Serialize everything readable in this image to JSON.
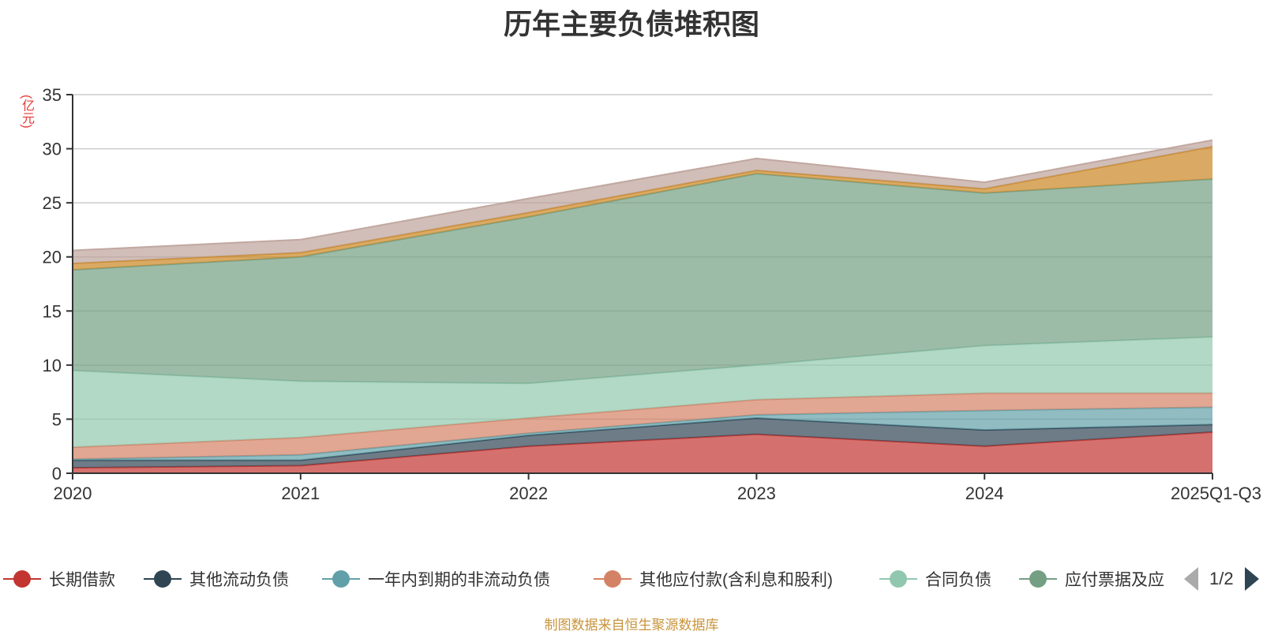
{
  "chart_data": {
    "type": "area",
    "stacked": true,
    "title": "历年主要负债堆积图",
    "unit_label": "(亿元)",
    "categories": [
      "2020",
      "2021",
      "2022",
      "2023",
      "2024",
      "2025Q1-Q3"
    ],
    "ylim": [
      0,
      35
    ],
    "yticks": [
      0,
      5,
      10,
      15,
      20,
      25,
      30,
      35
    ],
    "grid": true,
    "legend_position": "bottom",
    "series": [
      {
        "name": "长期借款",
        "color": "#c23531",
        "values": [
          0.5,
          0.7,
          2.5,
          3.6,
          2.5,
          3.8
        ]
      },
      {
        "name": "其他流动负债",
        "color": "#2f4554",
        "values": [
          0.7,
          0.5,
          1.0,
          1.5,
          1.5,
          0.7
        ]
      },
      {
        "name": "一年内到期的非流动负债",
        "color": "#61a0a8",
        "values": [
          0.1,
          0.5,
          0.2,
          0.3,
          1.8,
          1.6
        ]
      },
      {
        "name": "其他应付款(含利息和股利)",
        "color": "#d48265",
        "values": [
          1.1,
          1.6,
          1.4,
          1.4,
          1.6,
          1.3
        ]
      },
      {
        "name": "合同负债",
        "color": "#91c7ae",
        "values": [
          7.1,
          5.2,
          3.2,
          3.2,
          4.4,
          5.2
        ]
      },
      {
        "name": "应付票据及应付账款",
        "color": "#749f83",
        "values": [
          9.3,
          11.5,
          15.4,
          17.7,
          14.1,
          14.6
        ]
      },
      {
        "name": "",
        "color": "#ca8622",
        "values": [
          0.6,
          0.4,
          0.4,
          0.3,
          0.4,
          3.0
        ]
      },
      {
        "name": "",
        "color": "#bda29a",
        "values": [
          1.2,
          1.2,
          1.3,
          1.1,
          0.6,
          0.6
        ]
      }
    ]
  },
  "legend": {
    "items": [
      "长期借款",
      "其他流动负债",
      "一年内到期的非流动负债",
      "其他应付款(含利息和股利)",
      "合同负债",
      "应付票据及应"
    ],
    "page_text": "1/2"
  },
  "source_text": "制图数据来自恒生聚源数据库"
}
